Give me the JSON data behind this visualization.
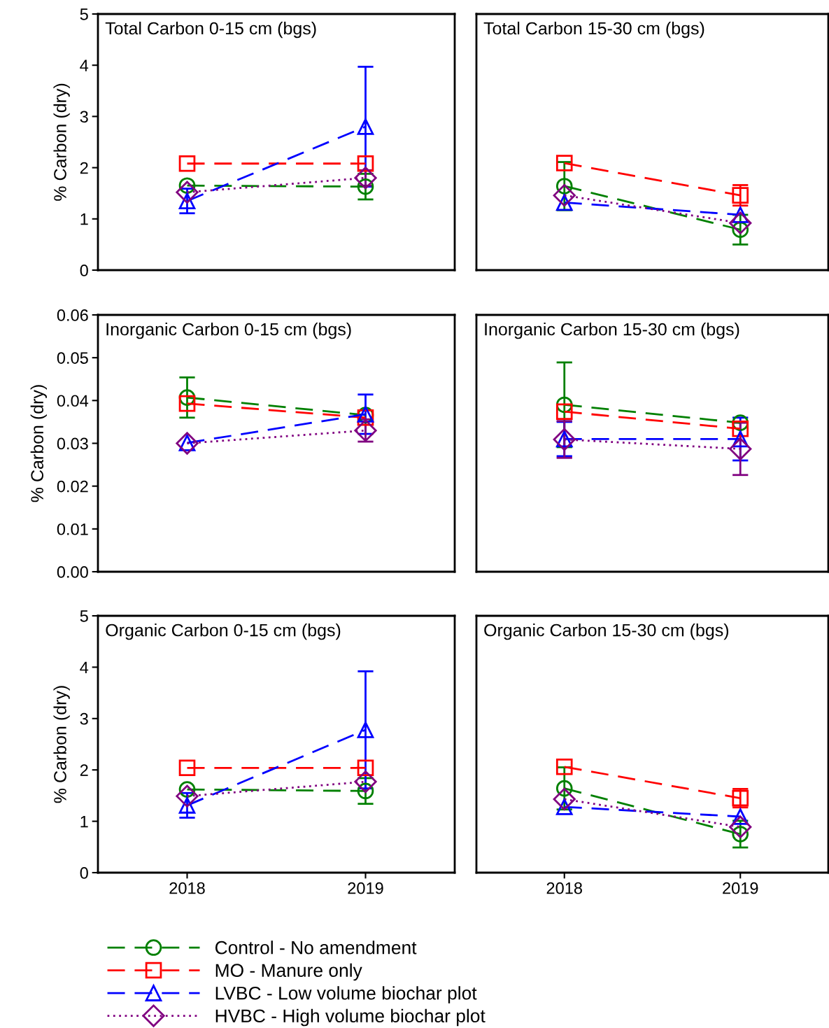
{
  "chart_data": [
    {
      "type": "line",
      "title": "Total Carbon 0-15 cm (bgs)",
      "ylabel": "% Carbon (dry)",
      "categories": [
        "2018",
        "2019"
      ],
      "ylim": [
        0,
        5
      ],
      "yticks": [
        0,
        1,
        2,
        3,
        4,
        5
      ],
      "tick_labels": "y",
      "series": [
        {
          "color": "#008000",
          "marker": "circle",
          "line_style": "dashed",
          "values": [
            1.65,
            1.63
          ],
          "errors": [
            null,
            0.25
          ]
        },
        {
          "color": "#ff0000",
          "marker": "square",
          "line_style": "dashed",
          "values": [
            2.08,
            2.08
          ]
        },
        {
          "color": "#0000ff",
          "marker": "triangle",
          "line_style": "dashed",
          "values": [
            1.35,
            2.8
          ],
          "errors": [
            0.24,
            1.17
          ]
        },
        {
          "color": "#800080",
          "marker": "diamond",
          "line_style": "dotted",
          "values": [
            1.52,
            1.8
          ],
          "errors": [
            null,
            0.15
          ]
        }
      ]
    },
    {
      "type": "line",
      "title": "Total Carbon 15-30 cm (bgs)",
      "categories": [
        "2018",
        "2019"
      ],
      "ylim": [
        0,
        5
      ],
      "yticks": [
        0,
        1,
        2,
        3,
        4,
        5
      ],
      "tick_labels": false,
      "series": [
        {
          "color": "#008000",
          "marker": "circle",
          "line_style": "dashed",
          "values": [
            1.64,
            0.79
          ],
          "errors": [
            0.47,
            0.29
          ]
        },
        {
          "color": "#ff0000",
          "marker": "square",
          "line_style": "dashed",
          "values": [
            2.09,
            1.46
          ],
          "errors": [
            null,
            0.2
          ]
        },
        {
          "color": "#0000ff",
          "marker": "triangle",
          "line_style": "dashed",
          "values": [
            1.32,
            1.08
          ]
        },
        {
          "color": "#800080",
          "marker": "diamond",
          "line_style": "dotted",
          "values": [
            1.46,
            0.92
          ]
        }
      ]
    },
    {
      "type": "line",
      "title": "Inorganic Carbon 0-15 cm (bgs)",
      "ylabel": "% Carbon (dry)",
      "categories": [
        "2018",
        "2019"
      ],
      "ylim": [
        0,
        0.06
      ],
      "yticks": [
        {
          "value": 0,
          "label": "0.00"
        },
        {
          "value": 0.01,
          "label": "0.01"
        },
        {
          "value": 0.02,
          "label": "0.02"
        },
        {
          "value": 0.03,
          "label": "0.03"
        },
        {
          "value": 0.04,
          "label": "0.04"
        },
        {
          "value": 0.05,
          "label": "0.05"
        },
        {
          "value": 0.06,
          "label": "0.06"
        }
      ],
      "tick_labels": "y",
      "series": [
        {
          "color": "#008000",
          "marker": "circle",
          "line_style": "dashed",
          "values": [
            0.0407,
            0.0366
          ],
          "errors": [
            0.0047,
            null
          ]
        },
        {
          "color": "#ff0000",
          "marker": "square",
          "line_style": "dashed",
          "values": [
            0.0393,
            0.036
          ]
        },
        {
          "color": "#0000ff",
          "marker": "triangle",
          "line_style": "dashed",
          "values": [
            0.0301,
            0.0368
          ],
          "errors": [
            null,
            0.0046
          ]
        },
        {
          "color": "#800080",
          "marker": "diamond",
          "line_style": "dotted",
          "values": [
            0.03,
            0.033
          ],
          "errors": [
            null,
            0.0026
          ]
        }
      ]
    },
    {
      "type": "line",
      "title": "Inorganic Carbon 15-30 cm (bgs)",
      "categories": [
        "2018",
        "2019"
      ],
      "ylim": [
        0,
        0.06
      ],
      "yticks": [
        0,
        0.01,
        0.02,
        0.03,
        0.04,
        0.05,
        0.06
      ],
      "tick_labels": false,
      "series": [
        {
          "color": "#008000",
          "marker": "circle",
          "line_style": "dashed",
          "values": [
            0.039,
            0.0348
          ],
          "errors": [
            0.0099,
            null
          ]
        },
        {
          "color": "#ff0000",
          "marker": "square",
          "line_style": "dashed",
          "values": [
            0.0374,
            0.0334
          ]
        },
        {
          "color": "#0000ff",
          "marker": "triangle",
          "line_style": "dashed",
          "values": [
            0.031,
            0.031
          ],
          "errors": [
            0.004,
            0.005
          ]
        },
        {
          "color": "#800080",
          "marker": "diamond",
          "line_style": "dotted",
          "values": [
            0.0309,
            0.0287
          ],
          "errors": [
            0.0043,
            0.0061
          ]
        }
      ]
    },
    {
      "type": "line",
      "title": "Organic Carbon 0-15 cm (bgs)",
      "ylabel": "% Carbon (dry)",
      "categories": [
        "2018",
        "2019"
      ],
      "ylim": [
        0,
        5
      ],
      "yticks": [
        0,
        1,
        2,
        3,
        4,
        5
      ],
      "legend": "bottom",
      "series": [
        {
          "name": "Control - No amendment",
          "color": "#008000",
          "marker": "circle",
          "line_style": "dashed",
          "values": [
            1.62,
            1.59
          ],
          "errors": [
            null,
            0.25
          ]
        },
        {
          "name": "MO - Manure only",
          "color": "#ff0000",
          "marker": "square",
          "line_style": "dashed",
          "values": [
            2.04,
            2.04
          ]
        },
        {
          "name": "LVBC - Low volume biochar plot",
          "color": "#0000ff",
          "marker": "triangle",
          "line_style": "dashed",
          "values": [
            1.31,
            2.78
          ],
          "errors": [
            0.24,
            1.14
          ]
        },
        {
          "name": "HVBC - High volume biochar plot",
          "color": "#800080",
          "marker": "diamond",
          "line_style": "dotted",
          "values": [
            1.49,
            1.77
          ]
        }
      ]
    },
    {
      "type": "line",
      "title": "Organic Carbon 15-30 cm (bgs)",
      "categories": [
        "2018",
        "2019"
      ],
      "ylim": [
        0,
        5
      ],
      "yticks": [
        0,
        1,
        2,
        3,
        4,
        5
      ],
      "tick_labels": "x",
      "series": [
        {
          "color": "#008000",
          "marker": "circle",
          "line_style": "dashed",
          "values": [
            1.64,
            0.75
          ],
          "errors": [
            0.41,
            0.26
          ]
        },
        {
          "color": "#ff0000",
          "marker": "square",
          "line_style": "dashed",
          "values": [
            2.06,
            1.45
          ],
          "errors": [
            null,
            0.18
          ]
        },
        {
          "color": "#0000ff",
          "marker": "triangle",
          "line_style": "dashed",
          "values": [
            1.28,
            1.09
          ]
        },
        {
          "color": "#800080",
          "marker": "diamond",
          "line_style": "dotted",
          "values": [
            1.43,
            0.89
          ]
        }
      ]
    }
  ]
}
